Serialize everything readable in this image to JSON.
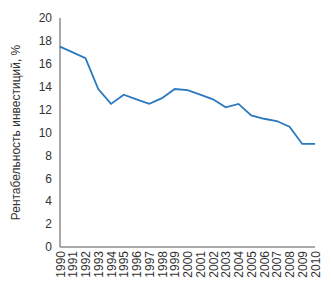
{
  "chart_data": {
    "type": "line",
    "y_label": "Рентабельность инвестиций, %",
    "categories": [
      "1990",
      "1991",
      "1992",
      "1993",
      "1994",
      "1995",
      "1996",
      "1997",
      "1998",
      "1999",
      "2000",
      "2001",
      "2002",
      "2003",
      "2004",
      "2005",
      "2006",
      "2007",
      "2008",
      "2009",
      "2010"
    ],
    "values": [
      17.5,
      17.0,
      16.5,
      13.8,
      12.5,
      13.3,
      12.9,
      12.5,
      13.0,
      13.8,
      13.7,
      13.3,
      12.9,
      12.2,
      12.5,
      11.5,
      11.2,
      11.0,
      10.5,
      9.0,
      9.0
    ],
    "color": "#2a78bd",
    "ylim": [
      0,
      20
    ],
    "yticks": [
      0,
      2,
      4,
      6,
      8,
      10,
      12,
      14,
      16,
      18,
      20
    ],
    "grid": false
  }
}
